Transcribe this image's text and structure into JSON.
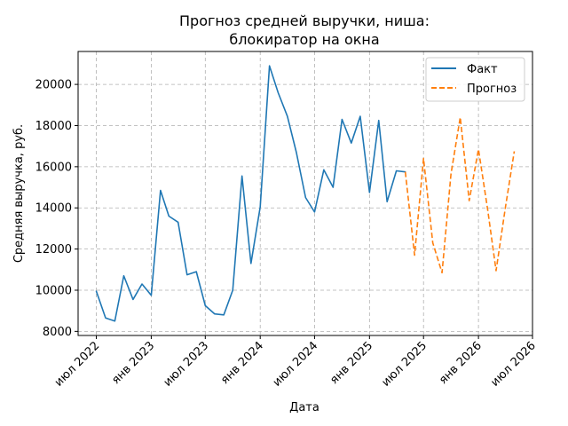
{
  "chart_data": {
    "type": "line",
    "title_lines": [
      "Прогноз средней выручки, ниша:",
      "блокиратор на окна"
    ],
    "xlabel": "Дата",
    "ylabel": "Средняя выручка, руб.",
    "xlim": [
      "2022-05-01",
      "2026-07-01"
    ],
    "ylim": [
      7800,
      21600
    ],
    "x_ticks": [
      {
        "date": "2022-07-01",
        "label": "июл 2022"
      },
      {
        "date": "2023-01-01",
        "label": "янв 2023"
      },
      {
        "date": "2023-07-01",
        "label": "июл 2023"
      },
      {
        "date": "2024-01-01",
        "label": "янв 2024"
      },
      {
        "date": "2024-07-01",
        "label": "июл 2024"
      },
      {
        "date": "2025-01-01",
        "label": "янв 2025"
      },
      {
        "date": "2025-07-01",
        "label": "июл 2025"
      },
      {
        "date": "2026-01-01",
        "label": "янв 2026"
      },
      {
        "date": "2026-07-01",
        "label": "июл 2026"
      }
    ],
    "y_ticks": [
      {
        "value": 8000,
        "label": "8000"
      },
      {
        "value": 10000,
        "label": "10000"
      },
      {
        "value": 12000,
        "label": "12000"
      },
      {
        "value": 14000,
        "label": "14000"
      },
      {
        "value": 16000,
        "label": "16000"
      },
      {
        "value": 18000,
        "label": "18000"
      },
      {
        "value": 20000,
        "label": "20000"
      }
    ],
    "grid": true,
    "legend_position": "top-right",
    "series": [
      {
        "name": "Факт",
        "color": "#1f77b4",
        "style": "solid",
        "points": [
          {
            "x": "2022-07-01",
            "y": 9950
          },
          {
            "x": "2022-08-01",
            "y": 8650
          },
          {
            "x": "2022-09-01",
            "y": 8500
          },
          {
            "x": "2022-10-01",
            "y": 10700
          },
          {
            "x": "2022-11-01",
            "y": 9550
          },
          {
            "x": "2022-12-01",
            "y": 10300
          },
          {
            "x": "2023-01-01",
            "y": 9750
          },
          {
            "x": "2023-02-01",
            "y": 14850
          },
          {
            "x": "2023-03-01",
            "y": 13600
          },
          {
            "x": "2023-04-01",
            "y": 13300
          },
          {
            "x": "2023-05-01",
            "y": 10750
          },
          {
            "x": "2023-06-01",
            "y": 10900
          },
          {
            "x": "2023-07-01",
            "y": 9250
          },
          {
            "x": "2023-08-01",
            "y": 8850
          },
          {
            "x": "2023-09-01",
            "y": 8800
          },
          {
            "x": "2023-10-01",
            "y": 10000
          },
          {
            "x": "2023-11-01",
            "y": 15550
          },
          {
            "x": "2023-12-01",
            "y": 11300
          },
          {
            "x": "2024-01-01",
            "y": 14050
          },
          {
            "x": "2024-02-01",
            "y": 20900
          },
          {
            "x": "2024-03-01",
            "y": 19600
          },
          {
            "x": "2024-04-01",
            "y": 18450
          },
          {
            "x": "2024-05-01",
            "y": 16700
          },
          {
            "x": "2024-06-01",
            "y": 14500
          },
          {
            "x": "2024-07-01",
            "y": 13800
          },
          {
            "x": "2024-08-01",
            "y": 15850
          },
          {
            "x": "2024-09-01",
            "y": 15000
          },
          {
            "x": "2024-10-01",
            "y": 18300
          },
          {
            "x": "2024-11-01",
            "y": 17150
          },
          {
            "x": "2024-12-01",
            "y": 18450
          },
          {
            "x": "2025-01-01",
            "y": 14750
          },
          {
            "x": "2025-02-01",
            "y": 18250
          },
          {
            "x": "2025-03-01",
            "y": 14300
          },
          {
            "x": "2025-04-01",
            "y": 15800
          },
          {
            "x": "2025-05-01",
            "y": 15750
          }
        ]
      },
      {
        "name": "Прогноз",
        "color": "#ff7f0e",
        "style": "dashed",
        "points": [
          {
            "x": "2025-05-01",
            "y": 15750
          },
          {
            "x": "2025-06-01",
            "y": 11700
          },
          {
            "x": "2025-07-01",
            "y": 16400
          },
          {
            "x": "2025-08-01",
            "y": 12300
          },
          {
            "x": "2025-09-01",
            "y": 10850
          },
          {
            "x": "2025-10-01",
            "y": 15650
          },
          {
            "x": "2025-11-01",
            "y": 18400
          },
          {
            "x": "2025-12-01",
            "y": 14350
          },
          {
            "x": "2026-01-01",
            "y": 16850
          },
          {
            "x": "2026-02-01",
            "y": 13900
          },
          {
            "x": "2026-03-01",
            "y": 10950
          },
          {
            "x": "2026-04-01",
            "y": 14000
          },
          {
            "x": "2026-05-01",
            "y": 16750
          }
        ]
      }
    ]
  }
}
